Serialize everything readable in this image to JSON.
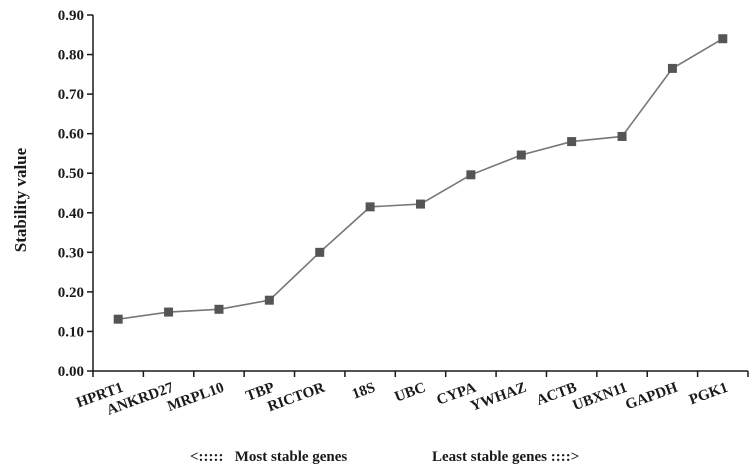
{
  "chart_data": {
    "type": "line",
    "title": "",
    "xlabel": "",
    "ylabel": "Stability value",
    "ylim": [
      0.0,
      0.9
    ],
    "yticks": [
      "0.00",
      "0.10",
      "0.20",
      "0.30",
      "0.40",
      "0.50",
      "0.60",
      "0.70",
      "0.80",
      "0.90"
    ],
    "categories": [
      "HPRT1",
      "ANKRD27",
      "MRPL10",
      "TBP",
      "RICTOR",
      "18S",
      "UBC",
      "CYPA",
      "YWHAZ",
      "ACTB",
      "UBXN11",
      "GAPDH",
      "PGK1"
    ],
    "series": [
      {
        "values": [
          0.131,
          0.149,
          0.156,
          0.179,
          0.3,
          0.415,
          0.422,
          0.496,
          0.546,
          0.58,
          0.593,
          0.765,
          0.84
        ]
      }
    ],
    "grid": false,
    "legend": "none",
    "line_color": "#777777",
    "marker_color": "#555555",
    "axis_color": "#1a1a1a"
  },
  "annotations": {
    "left_note": "<:::::   Most stable genes",
    "right_note": "Least stable genes ::::>"
  }
}
